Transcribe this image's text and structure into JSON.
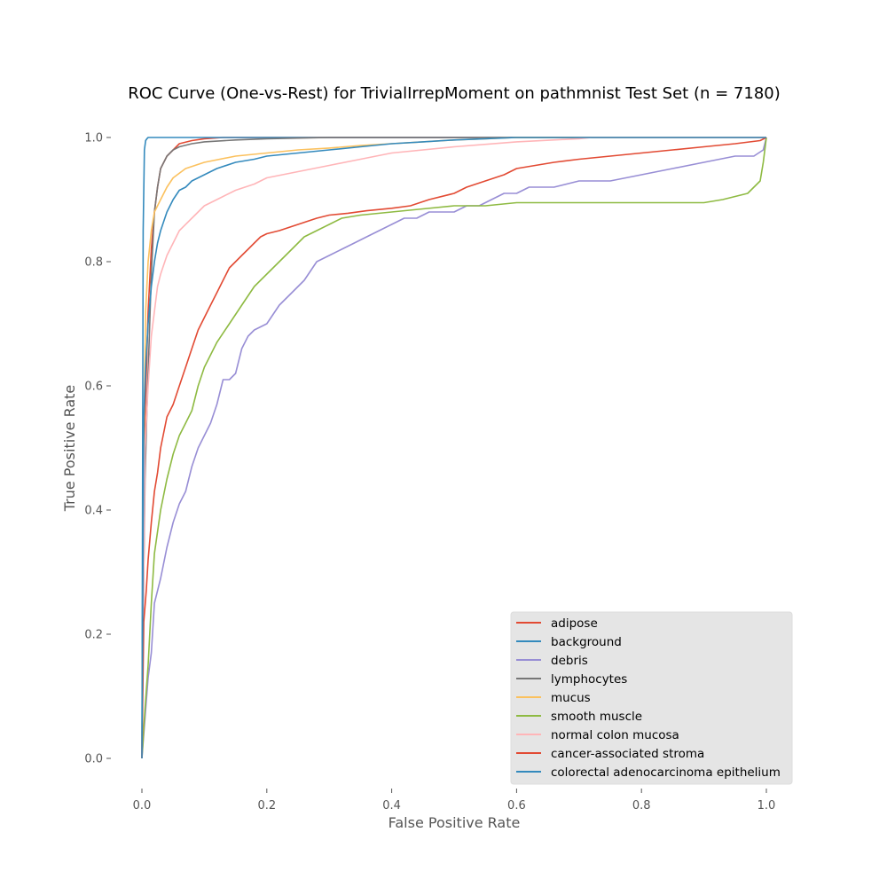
{
  "chart_data": {
    "type": "line",
    "title": "ROC Curve (One-vs-Rest) for TrivialIrrepMoment on pathmnist Test Set (n = 7180)",
    "xlabel": "False Positive Rate",
    "ylabel": "True Positive Rate",
    "xlim": [
      0.0,
      1.0
    ],
    "ylim": [
      0.0,
      1.0
    ],
    "xticks": [
      "0.0",
      "0.2",
      "0.4",
      "0.6",
      "0.8",
      "1.0"
    ],
    "yticks": [
      "0.0",
      "0.2",
      "0.4",
      "0.6",
      "0.8",
      "1.0"
    ],
    "grid": false,
    "legend_position": "lower-right",
    "series": [
      {
        "name": "adipose",
        "color": "#E24A33",
        "x": [
          0,
          0.002,
          0.005,
          0.01,
          0.015,
          0.02,
          0.025,
          0.03,
          0.04,
          0.06,
          0.08,
          0.1,
          0.13,
          0.2,
          0.4,
          1.0
        ],
        "y": [
          0,
          0.3,
          0.55,
          0.72,
          0.82,
          0.88,
          0.92,
          0.95,
          0.97,
          0.99,
          0.995,
          0.998,
          1.0,
          1.0,
          1.0,
          1.0
        ]
      },
      {
        "name": "background",
        "color": "#348ABD",
        "x": [
          0,
          0.002,
          0.004,
          0.006,
          0.008,
          0.01,
          0.02,
          0.04,
          0.1,
          0.3,
          0.6,
          1.0
        ],
        "y": [
          0,
          0.85,
          0.98,
          0.995,
          0.998,
          1.0,
          1.0,
          1.0,
          1.0,
          1.0,
          1.0,
          1.0
        ]
      },
      {
        "name": "debris",
        "color": "#988ED5",
        "x": [
          0,
          0.01,
          0.015,
          0.02,
          0.03,
          0.04,
          0.05,
          0.06,
          0.07,
          0.08,
          0.09,
          0.1,
          0.11,
          0.12,
          0.13,
          0.14,
          0.15,
          0.16,
          0.17,
          0.18,
          0.2,
          0.22,
          0.24,
          0.26,
          0.28,
          0.3,
          0.32,
          0.34,
          0.36,
          0.38,
          0.4,
          0.42,
          0.44,
          0.46,
          0.48,
          0.5,
          0.52,
          0.54,
          0.56,
          0.58,
          0.6,
          0.62,
          0.64,
          0.66,
          0.7,
          0.75,
          0.8,
          0.85,
          0.9,
          0.95,
          0.98,
          0.995,
          1.0
        ],
        "y": [
          0,
          0.13,
          0.17,
          0.25,
          0.29,
          0.34,
          0.38,
          0.41,
          0.43,
          0.47,
          0.5,
          0.52,
          0.54,
          0.57,
          0.61,
          0.61,
          0.62,
          0.66,
          0.68,
          0.69,
          0.7,
          0.73,
          0.75,
          0.77,
          0.8,
          0.81,
          0.82,
          0.83,
          0.84,
          0.85,
          0.86,
          0.87,
          0.87,
          0.88,
          0.88,
          0.88,
          0.89,
          0.89,
          0.9,
          0.91,
          0.91,
          0.92,
          0.92,
          0.92,
          0.93,
          0.93,
          0.94,
          0.95,
          0.96,
          0.97,
          0.97,
          0.98,
          1.0
        ]
      },
      {
        "name": "lymphocytes",
        "color": "#777777",
        "x": [
          0,
          0.003,
          0.005,
          0.008,
          0.01,
          0.015,
          0.02,
          0.025,
          0.03,
          0.04,
          0.05,
          0.06,
          0.08,
          0.1,
          0.15,
          0.2,
          0.3,
          0.4,
          0.6,
          1.0
        ],
        "y": [
          0,
          0.3,
          0.45,
          0.56,
          0.62,
          0.78,
          0.88,
          0.92,
          0.95,
          0.97,
          0.98,
          0.985,
          0.99,
          0.993,
          0.996,
          0.998,
          1.0,
          1.0,
          1.0,
          1.0
        ]
      },
      {
        "name": "mucus",
        "color": "#FBC15E",
        "x": [
          0,
          0.003,
          0.006,
          0.01,
          0.015,
          0.02,
          0.03,
          0.04,
          0.05,
          0.07,
          0.1,
          0.15,
          0.2,
          0.25,
          0.3,
          0.35,
          0.4,
          0.45,
          0.5,
          0.55,
          0.6,
          1.0
        ],
        "y": [
          0,
          0.5,
          0.72,
          0.8,
          0.85,
          0.88,
          0.9,
          0.92,
          0.935,
          0.95,
          0.96,
          0.97,
          0.975,
          0.98,
          0.983,
          0.987,
          0.99,
          0.993,
          0.996,
          0.998,
          1.0,
          1.0
        ]
      },
      {
        "name": "smooth muscle",
        "color": "#8EBA42",
        "x": [
          0,
          0.005,
          0.01,
          0.015,
          0.02,
          0.03,
          0.04,
          0.05,
          0.06,
          0.07,
          0.08,
          0.09,
          0.1,
          0.12,
          0.14,
          0.16,
          0.18,
          0.2,
          0.22,
          0.24,
          0.26,
          0.28,
          0.3,
          0.32,
          0.35,
          0.4,
          0.45,
          0.5,
          0.55,
          0.6,
          0.65,
          0.7,
          0.75,
          0.8,
          0.85,
          0.9,
          0.93,
          0.95,
          0.97,
          0.99,
          0.995,
          1.0
        ],
        "y": [
          0,
          0.08,
          0.15,
          0.25,
          0.33,
          0.4,
          0.45,
          0.49,
          0.52,
          0.54,
          0.56,
          0.6,
          0.63,
          0.67,
          0.7,
          0.73,
          0.76,
          0.78,
          0.8,
          0.82,
          0.84,
          0.85,
          0.86,
          0.87,
          0.875,
          0.88,
          0.885,
          0.89,
          0.89,
          0.895,
          0.895,
          0.895,
          0.895,
          0.895,
          0.895,
          0.895,
          0.9,
          0.905,
          0.91,
          0.93,
          0.96,
          1.0
        ]
      },
      {
        "name": "normal colon mucosa",
        "color": "#FFB5B8",
        "x": [
          0,
          0.005,
          0.01,
          0.015,
          0.02,
          0.025,
          0.03,
          0.04,
          0.05,
          0.06,
          0.08,
          0.1,
          0.12,
          0.15,
          0.18,
          0.2,
          0.25,
          0.3,
          0.35,
          0.4,
          0.5,
          0.6,
          0.7,
          0.72,
          1.0
        ],
        "y": [
          0,
          0.5,
          0.6,
          0.68,
          0.72,
          0.76,
          0.78,
          0.81,
          0.83,
          0.85,
          0.87,
          0.89,
          0.9,
          0.915,
          0.925,
          0.935,
          0.945,
          0.955,
          0.965,
          0.975,
          0.985,
          0.993,
          0.998,
          1.0,
          1.0
        ]
      },
      {
        "name": "cancer-associated stroma",
        "color": "#E24A33",
        "x": [
          0,
          0.003,
          0.007,
          0.01,
          0.015,
          0.02,
          0.025,
          0.03,
          0.04,
          0.05,
          0.06,
          0.07,
          0.08,
          0.09,
          0.1,
          0.11,
          0.12,
          0.13,
          0.14,
          0.15,
          0.16,
          0.17,
          0.18,
          0.19,
          0.2,
          0.22,
          0.25,
          0.28,
          0.3,
          0.33,
          0.36,
          0.4,
          0.43,
          0.46,
          0.5,
          0.52,
          0.55,
          0.58,
          0.6,
          0.63,
          0.66,
          0.7,
          0.75,
          0.8,
          0.85,
          0.9,
          0.95,
          0.99,
          1.0
        ],
        "y": [
          0,
          0.22,
          0.27,
          0.32,
          0.38,
          0.43,
          0.46,
          0.5,
          0.55,
          0.57,
          0.6,
          0.63,
          0.66,
          0.69,
          0.71,
          0.73,
          0.75,
          0.77,
          0.79,
          0.8,
          0.81,
          0.82,
          0.83,
          0.84,
          0.845,
          0.85,
          0.86,
          0.87,
          0.875,
          0.878,
          0.882,
          0.886,
          0.89,
          0.9,
          0.91,
          0.92,
          0.93,
          0.94,
          0.95,
          0.955,
          0.96,
          0.965,
          0.97,
          0.975,
          0.98,
          0.985,
          0.99,
          0.995,
          1.0
        ]
      },
      {
        "name": "colorectal adenocarcinoma epithelium",
        "color": "#348ABD",
        "x": [
          0,
          0.003,
          0.006,
          0.01,
          0.015,
          0.02,
          0.025,
          0.03,
          0.04,
          0.05,
          0.06,
          0.07,
          0.08,
          0.1,
          0.12,
          0.15,
          0.18,
          0.2,
          0.25,
          0.3,
          0.35,
          0.4,
          0.45,
          0.5,
          0.55,
          0.6,
          1.0
        ],
        "y": [
          0,
          0.55,
          0.63,
          0.7,
          0.76,
          0.8,
          0.83,
          0.85,
          0.88,
          0.9,
          0.915,
          0.92,
          0.93,
          0.94,
          0.95,
          0.96,
          0.965,
          0.97,
          0.975,
          0.98,
          0.985,
          0.99,
          0.993,
          0.996,
          0.998,
          1.0,
          1.0
        ]
      }
    ]
  }
}
